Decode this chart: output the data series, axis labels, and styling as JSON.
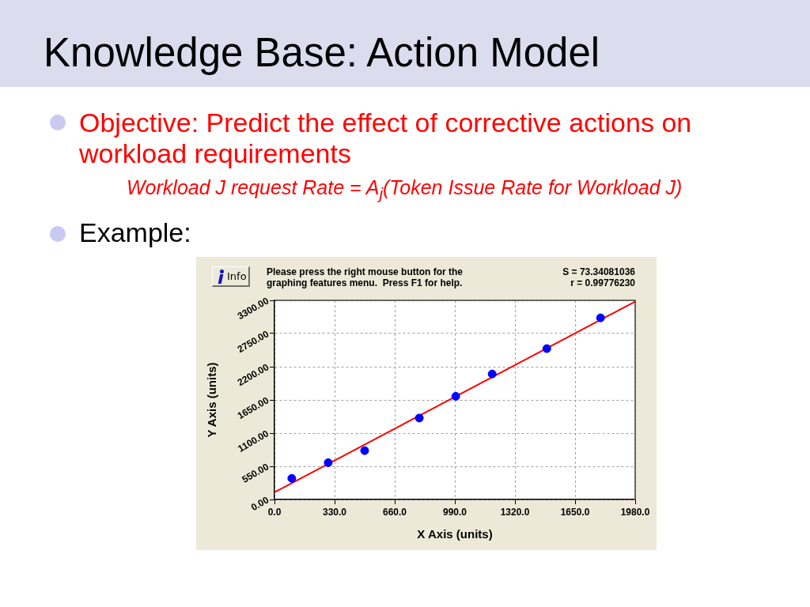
{
  "chart_data": {
    "type": "scatter",
    "title": "Knowledge Base: Action Model",
    "subtitle": "Objective: Predict the effect of corrective actions on workload requirements",
    "xlabel": "X Axis (units)",
    "ylabel": "Y Axis (units)",
    "annotations": [
      "Workload J request Rate = A$_{j}$(Token Issue Rate for Workload J)",
      "Example:",
      "Info",
      "Please press the right mouse button for the graphing features menu.  Press F1 for help.",
      "S = 73.34081036",
      "r = 0.99776230"
    ],
    "series": [
      {
        "type": "scatter",
        "color": "#0000ff",
        "marker": "circle",
        "x": [
          95,
          295,
          495,
          795,
          995,
          1195,
          1495,
          1790
        ],
        "values": [
          350,
          610,
          810,
          1350,
          1710,
          2080,
          2500,
          3010
        ]
      },
      {
        "type": "line",
        "color": "#ff0000",
        "marker": "none",
        "x": [
          0,
          1980
        ],
        "values": [
          120,
          3280
        ]
      }
    ],
    "xlim": [
      0,
      1980
    ],
    "ylim": [
      0,
      3300
    ],
    "xticks": [
      {
        "value": 0,
        "label": "0.0"
      },
      {
        "value": 330,
        "label": "330.0"
      },
      {
        "value": 660,
        "label": "660.0"
      },
      {
        "value": 990,
        "label": "990.0"
      },
      {
        "value": 1320,
        "label": "1320.0"
      },
      {
        "value": 1650,
        "label": "1650.0"
      },
      {
        "value": 1980,
        "label": "1980.0"
      }
    ],
    "yticks": [
      {
        "value": 0,
        "label": "0.00"
      },
      {
        "value": 550,
        "label": "550.00"
      },
      {
        "value": 1100,
        "label": "1100.00"
      },
      {
        "value": 1650,
        "label": "1650.00"
      },
      {
        "value": 2200,
        "label": "2200.00"
      },
      {
        "value": 2750,
        "label": "2750.00"
      },
      {
        "value": 3300,
        "label": "3300.00"
      }
    ],
    "grid": true
  }
}
